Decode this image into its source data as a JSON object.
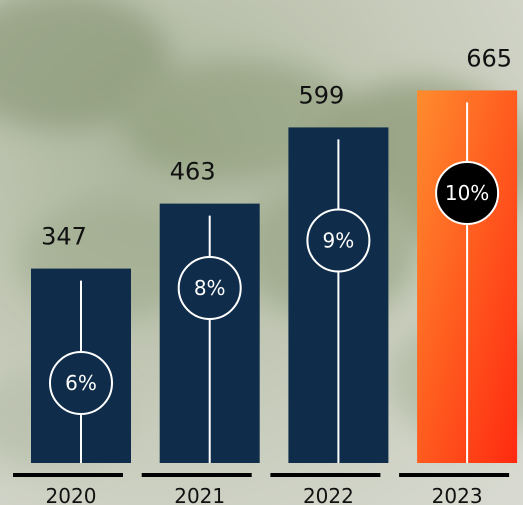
{
  "chart_data": {
    "type": "bar",
    "categories": [
      "2020",
      "2021",
      "2022",
      "2023"
    ],
    "values": [
      347,
      463,
      599,
      665
    ],
    "value_labels": [
      "347",
      "463",
      "599",
      "665"
    ],
    "percent_labels": [
      "6%",
      "8%",
      "9%",
      "10%"
    ],
    "percent_values": [
      6,
      8,
      9,
      10
    ],
    "highlight_index": 3,
    "title": "",
    "xlabel": "",
    "ylabel": "",
    "ylim": [
      0,
      780
    ],
    "grid": false,
    "colors": {
      "bar": "#0f2d4a",
      "highlight_start": "#ff8c2e",
      "highlight_end": "#ff2a10",
      "percent_circle": "#0f2d4a",
      "percent_circle_highlight": "#000000",
      "line": "#ffffff",
      "label_text": "#111111",
      "axis_line": "#000000"
    }
  }
}
